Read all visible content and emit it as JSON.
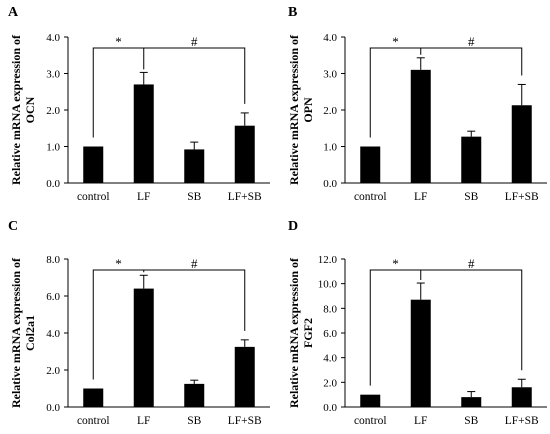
{
  "colors": {
    "bar": "#000000",
    "axis": "#000000",
    "background": "#ffffff"
  },
  "chart_data": [
    {
      "panel": "A",
      "type": "bar",
      "categories": [
        "control",
        "LF",
        "SB",
        "LF+SB"
      ],
      "values": [
        1.0,
        2.7,
        0.92,
        1.57
      ],
      "errors": [
        0.0,
        0.33,
        0.2,
        0.35
      ],
      "ylim": [
        0,
        4.0
      ],
      "yticks": [
        "0.0",
        "1.0",
        "2.0",
        "3.0",
        "4.0"
      ],
      "ylabel": [
        "Relative mRNA expression of",
        "OCN"
      ],
      "star_label": "*",
      "hash_label": "#"
    },
    {
      "panel": "B",
      "type": "bar",
      "categories": [
        "control",
        "LF",
        "SB",
        "LF+SB"
      ],
      "values": [
        1.0,
        3.1,
        1.27,
        2.13
      ],
      "errors": [
        0.0,
        0.33,
        0.15,
        0.57
      ],
      "ylim": [
        0,
        4.0
      ],
      "yticks": [
        "0.0",
        "1.0",
        "2.0",
        "3.0",
        "4.0"
      ],
      "ylabel": [
        "Relative mRNA expression of",
        "OPN"
      ],
      "star_label": "*",
      "hash_label": "#"
    },
    {
      "panel": "C",
      "type": "bar",
      "categories": [
        "control",
        "LF",
        "SB",
        "LF+SB"
      ],
      "values": [
        1.0,
        6.4,
        1.25,
        3.25
      ],
      "errors": [
        0.0,
        0.72,
        0.2,
        0.38
      ],
      "ylim": [
        0,
        8.0
      ],
      "yticks": [
        "0.0",
        "2.0",
        "4.0",
        "6.0",
        "8.0"
      ],
      "ylabel": [
        "Relative mRNA expression of",
        "Col2a1"
      ],
      "star_label": "*",
      "hash_label": "#"
    },
    {
      "panel": "D",
      "type": "bar",
      "categories": [
        "control",
        "LF",
        "SB",
        "LF+SB"
      ],
      "values": [
        1.0,
        8.7,
        0.8,
        1.6
      ],
      "errors": [
        0.0,
        1.35,
        0.45,
        0.65
      ],
      "ylim": [
        0,
        12.0
      ],
      "yticks": [
        "0.0",
        "2.0",
        "4.0",
        "6.0",
        "8.0",
        "10.0",
        "12.0"
      ],
      "ylabel": [
        "Relative mRNA expression of",
        "FGF2"
      ],
      "star_label": "*",
      "hash_label": "#"
    }
  ]
}
